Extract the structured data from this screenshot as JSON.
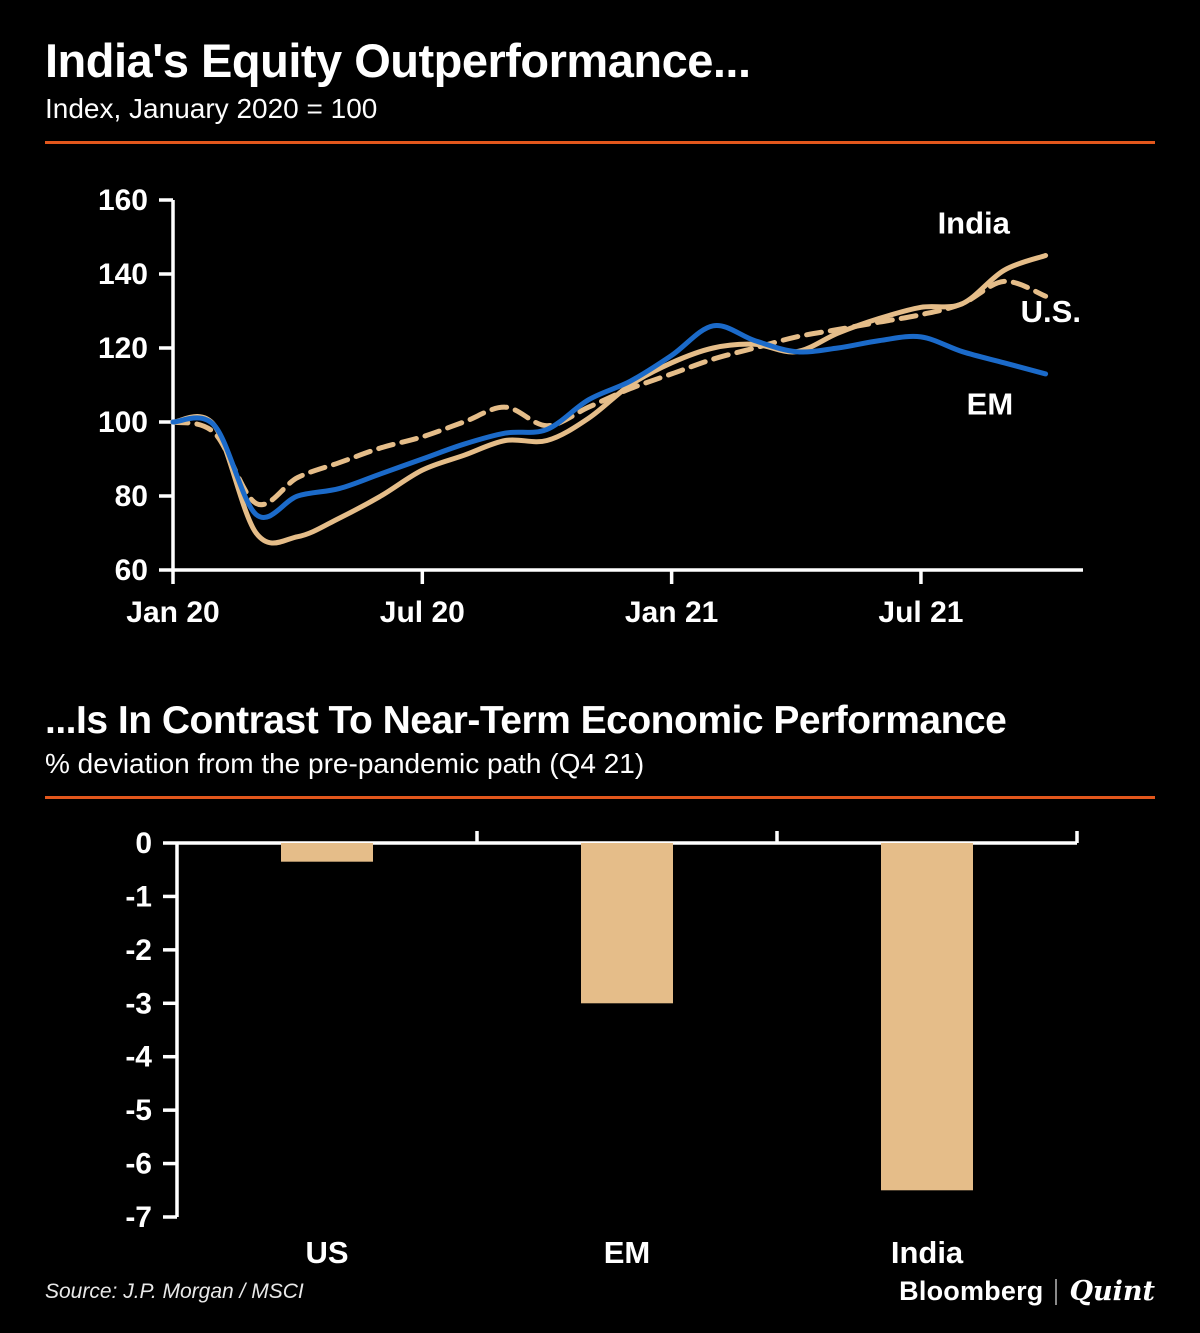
{
  "panel1": {
    "title": "India's Equity Outperformance...",
    "subtitle": "Index, January 2020 = 100"
  },
  "panel2": {
    "title": "...Is In Contrast To Near-Term Economic Performance",
    "subtitle": "% deviation from the pre-pandemic path (Q4 21)"
  },
  "footer": {
    "source": "Source: J.P. Morgan / MSCI",
    "brand_left": "Bloomberg",
    "brand_right": "Quint"
  },
  "colors": {
    "background": "#000000",
    "tan": "#E5BD89",
    "blue": "#1B6AC9",
    "divider": "#E2571C",
    "axis": "#FFFFFF"
  },
  "chart_data": [
    {
      "type": "line",
      "title": "India's Equity Outperformance...",
      "subtitle": "Index, January 2020 = 100",
      "x_unit": "months since Jan 2020",
      "x": [
        0,
        1,
        2,
        3,
        4,
        5,
        6,
        7,
        8,
        9,
        10,
        11,
        12,
        13,
        14,
        15,
        16,
        17,
        18,
        19,
        20,
        21
      ],
      "xmax": 21.9,
      "xticks": [
        {
          "pos": 0,
          "label": "Jan 20"
        },
        {
          "pos": 6,
          "label": "Jul 20"
        },
        {
          "pos": 12,
          "label": "Jan 21"
        },
        {
          "pos": 18,
          "label": "Jul 21"
        }
      ],
      "ylim": [
        60,
        160
      ],
      "yticks": [
        60,
        80,
        100,
        120,
        140,
        160
      ],
      "series": [
        {
          "name": "U.S.",
          "style": "dashed",
          "color": "#E5BD89",
          "values": [
            100,
            97,
            78,
            85,
            89,
            93,
            96,
            100,
            104,
            99,
            104,
            109,
            113,
            117,
            120,
            123,
            125,
            127,
            129,
            132,
            138,
            134
          ]
        },
        {
          "name": "India",
          "style": "solid",
          "color": "#E5BD89",
          "values": [
            100,
            99,
            70,
            69,
            74,
            80,
            87,
            91,
            95,
            95,
            101,
            110,
            116,
            120,
            121,
            119,
            124,
            128,
            131,
            132,
            141,
            145
          ]
        },
        {
          "name": "EM",
          "style": "solid",
          "color": "#1B6AC9",
          "values": [
            100,
            99,
            75,
            80,
            82,
            86,
            90,
            94,
            97,
            98,
            106,
            111,
            118,
            126,
            122,
            119,
            120,
            122,
            123,
            119,
            116,
            113
          ]
        }
      ],
      "annotations": [
        {
          "text": "India",
          "x": 18.4,
          "y": 151
        },
        {
          "text": "U.S.",
          "x": 20.4,
          "y": 127
        },
        {
          "text": "EM",
          "x": 19.1,
          "y": 102
        }
      ],
      "grid": false,
      "legend": "inline-labels"
    },
    {
      "type": "bar",
      "categories": [
        "US",
        "EM",
        "India"
      ],
      "values": [
        -0.35,
        -3.0,
        -6.5
      ],
      "title": "...Is In Contrast To Near-Term Economic Performance",
      "xlabel": "",
      "ylabel": "% deviation from the pre-pandemic path (Q4 21)",
      "ylim": [
        -7,
        0
      ],
      "yticks": [
        0,
        -1,
        -2,
        -3,
        -4,
        -5,
        -6,
        -7
      ],
      "bar_color": "#E5BD89",
      "grid": false
    }
  ]
}
